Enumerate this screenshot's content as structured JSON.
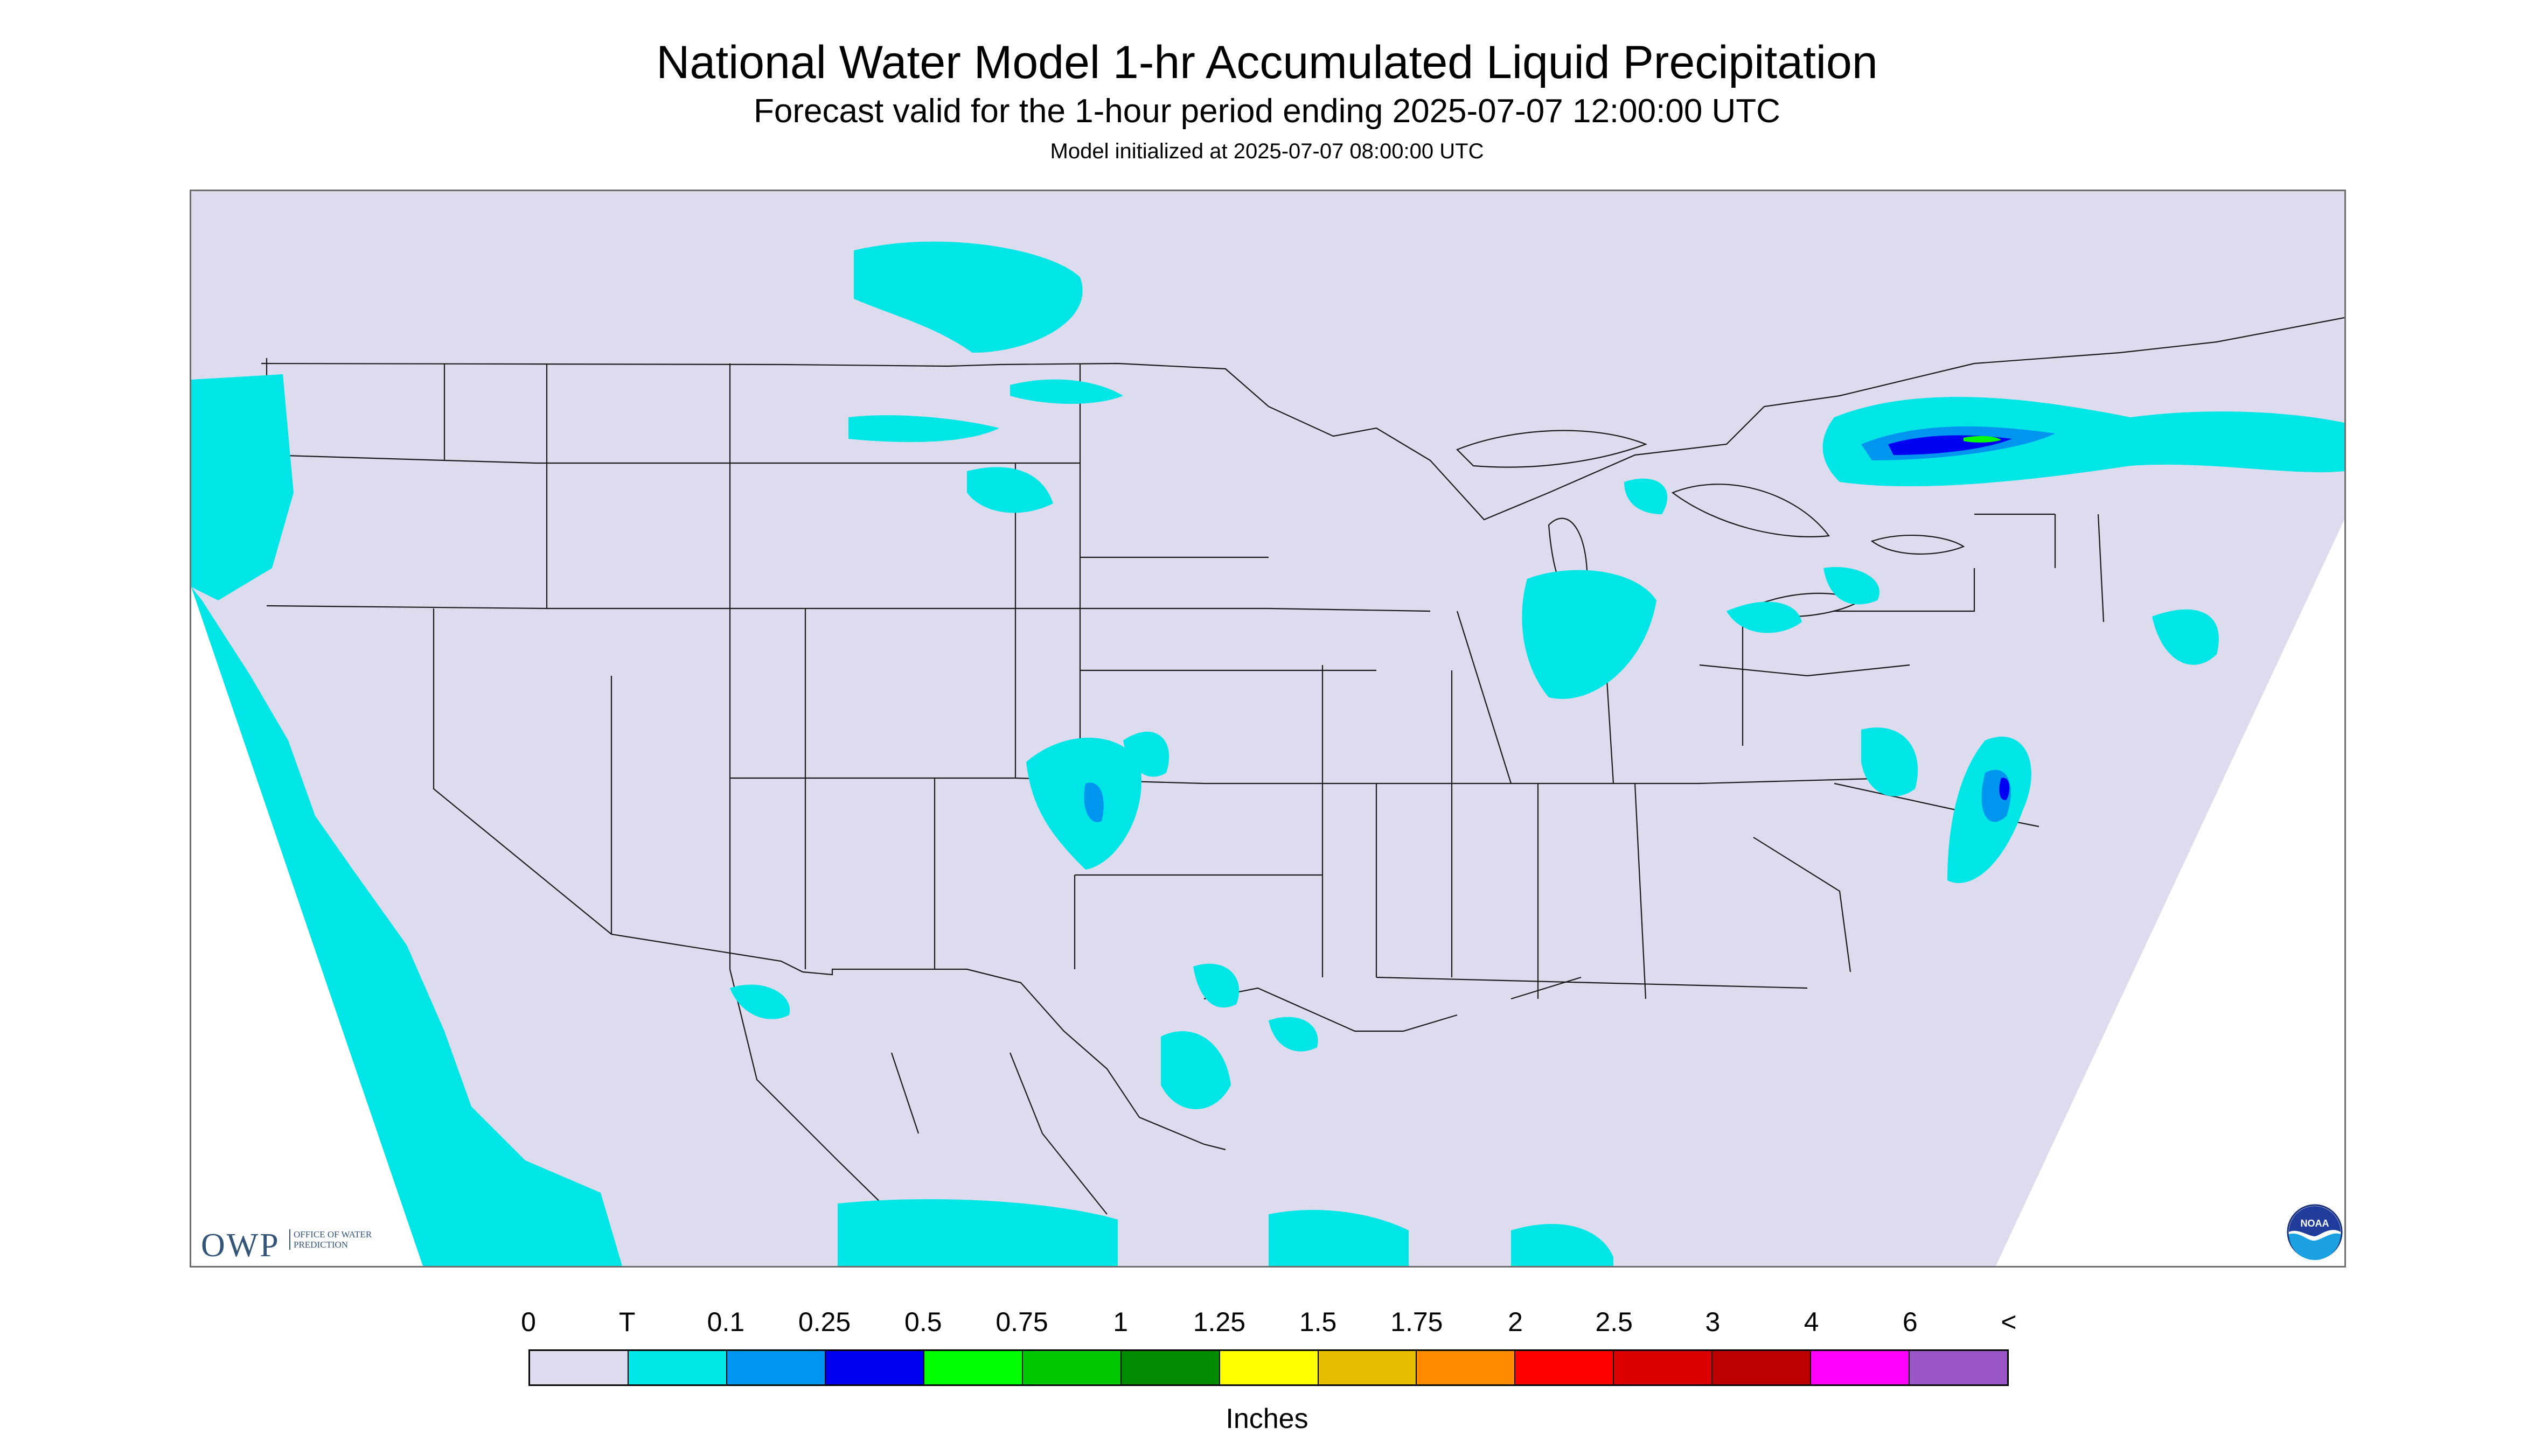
{
  "header": {
    "title": "National Water Model 1-hr Accumulated Liquid Precipitation",
    "subtitle": "Forecast valid for the 1-hour period ending 2025-07-07 12:00:00 UTC",
    "init": "Model initialized at 2025-07-07 08:00:00 UTC"
  },
  "logos": {
    "owp_mark": "OWP",
    "owp_sub": "Office of Water Prediction",
    "noaa": "NOAA"
  },
  "legend": {
    "labels": [
      "0",
      "T",
      "0.1",
      "0.25",
      "0.5",
      "0.75",
      "1",
      "1.25",
      "1.5",
      "1.75",
      "2",
      "2.5",
      "3",
      "4",
      "6",
      "<"
    ],
    "colors": [
      "#dcdcee",
      "#00e5e5",
      "#0096ef",
      "#0000f4",
      "#00ff00",
      "#00c800",
      "#008c00",
      "#ffff00",
      "#e6be00",
      "#ff8c00",
      "#ff0000",
      "#dc0000",
      "#bc0000",
      "#ff00ff",
      "#9a55c6"
    ],
    "units": "Inches"
  },
  "map": {
    "background_color": "#dcdcee",
    "outside_color": "#ffffff",
    "precip_light": "#00e5e5",
    "precip_moderate": "#0096ef",
    "precip_heavy": "#0000f4",
    "precip_green": "#00ff00"
  }
}
